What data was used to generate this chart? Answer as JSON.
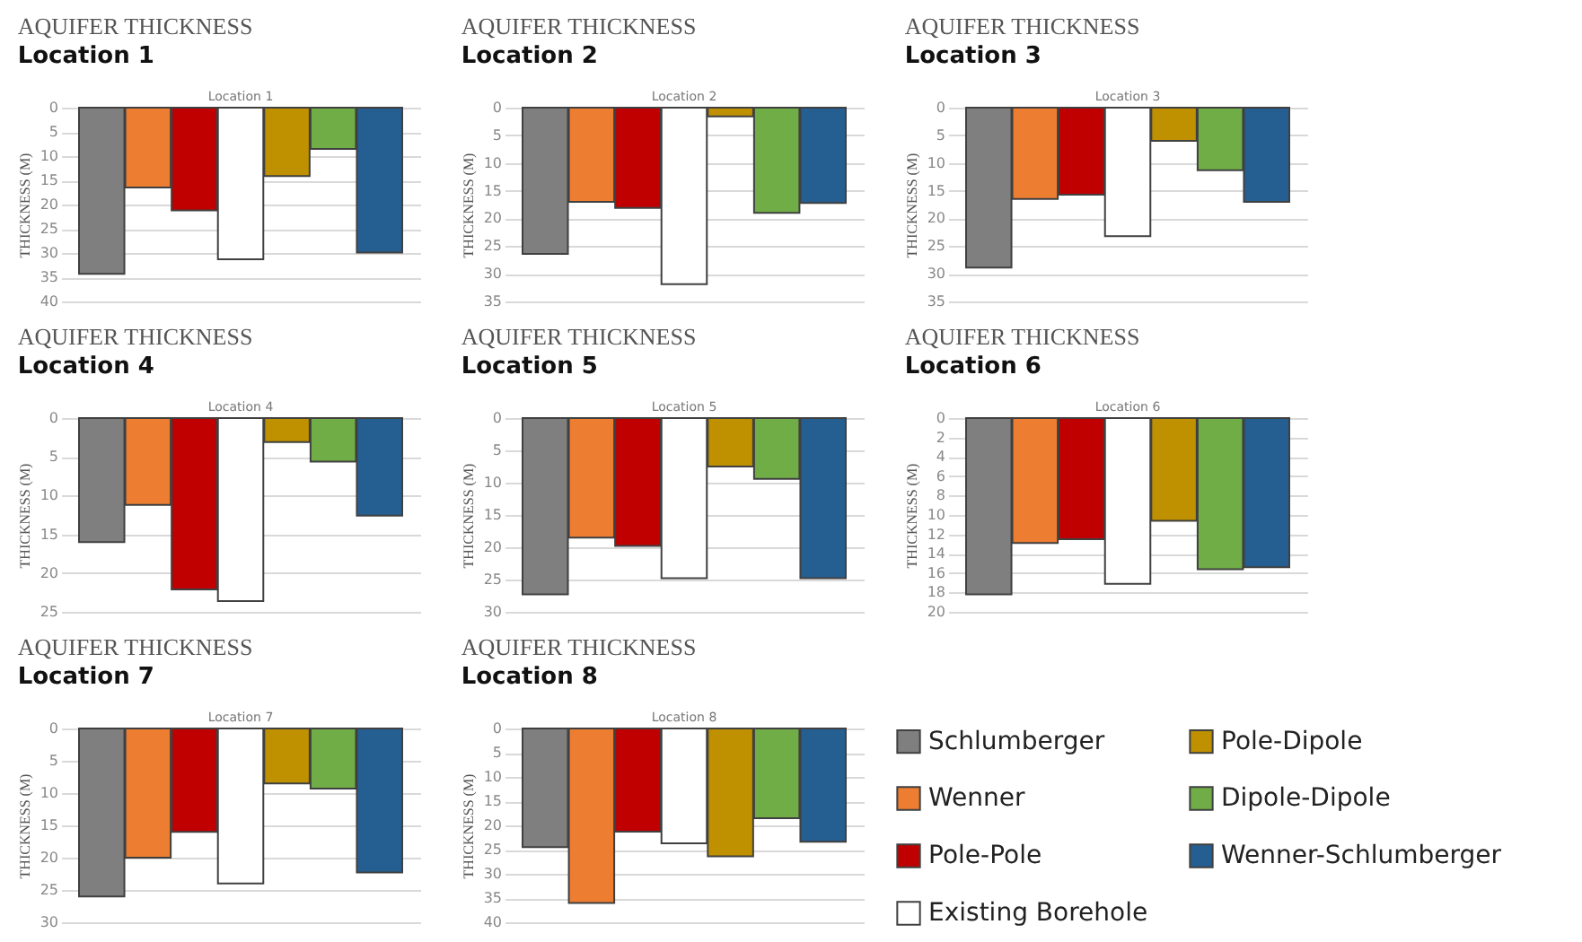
{
  "chart_data": [
    {
      "type": "bar",
      "title": "AQUIFER THICKNESS",
      "subtitle": "Location 1",
      "annotations": [
        "Location 1"
      ],
      "ylabel": "THICKNESS (M)",
      "categories": [
        null
      ],
      "ylim": [
        40,
        0
      ],
      "yticks": [
        0,
        5,
        10,
        15,
        20,
        25,
        30,
        35,
        40
      ],
      "grid": "y",
      "tick_labels": "y",
      "series": [
        {
          "color": "#7f7f7f",
          "values": [
            34.3
          ]
        },
        {
          "color": "#ed7d31",
          "values": [
            16.5
          ]
        },
        {
          "color": "#c00000",
          "values": [
            21.2
          ]
        },
        {
          "color": "#ffffff",
          "values": [
            31.3
          ]
        },
        {
          "color": "#bf9000",
          "values": [
            14.1
          ]
        },
        {
          "color": "#70ad47",
          "values": [
            8.5
          ]
        },
        {
          "color": "#255e91",
          "values": [
            29.9
          ]
        }
      ]
    },
    {
      "type": "bar",
      "title": "AQUIFER THICKNESS",
      "subtitle": "Location 2",
      "annotations": [
        "Location 2"
      ],
      "ylabel": "THICKNESS (M)",
      "categories": [
        null
      ],
      "ylim": [
        35,
        0
      ],
      "yticks": [
        0,
        5,
        10,
        15,
        20,
        25,
        30,
        35
      ],
      "grid": "y",
      "tick_labels": "y",
      "series": [
        {
          "color": "#7f7f7f",
          "values": [
            26.4
          ]
        },
        {
          "color": "#ed7d31",
          "values": [
            17
          ]
        },
        {
          "color": "#c00000",
          "values": [
            18.1
          ]
        },
        {
          "color": "#ffffff",
          "values": [
            31.9
          ]
        },
        {
          "color": "#bf9000",
          "values": [
            1.6
          ]
        },
        {
          "color": "#70ad47",
          "values": [
            19
          ]
        },
        {
          "color": "#255e91",
          "values": [
            17.2
          ]
        }
      ]
    },
    {
      "type": "bar",
      "title": "AQUIFER THICKNESS",
      "subtitle": "Location 3",
      "annotations": [
        "Location 3"
      ],
      "ylabel": "THICKNESS (M)",
      "categories": [
        null
      ],
      "ylim": [
        35,
        0
      ],
      "yticks": [
        0,
        5,
        10,
        15,
        20,
        25,
        30,
        35
      ],
      "grid": "y",
      "tick_labels": "y",
      "series": [
        {
          "color": "#7f7f7f",
          "values": [
            28.9
          ]
        },
        {
          "color": "#ed7d31",
          "values": [
            16.5
          ]
        },
        {
          "color": "#c00000",
          "values": [
            15.7
          ]
        },
        {
          "color": "#ffffff",
          "values": [
            23.2
          ]
        },
        {
          "color": "#bf9000",
          "values": [
            6
          ]
        },
        {
          "color": "#70ad47",
          "values": [
            11.3
          ]
        },
        {
          "color": "#255e91",
          "values": [
            17
          ]
        }
      ]
    },
    {
      "type": "bar",
      "title": "AQUIFER THICKNESS",
      "subtitle": "Location 4",
      "annotations": [
        "Location 4"
      ],
      "ylabel": "THICKNESS (M)",
      "categories": [
        null
      ],
      "ylim": [
        25,
        0
      ],
      "yticks": [
        0,
        5,
        10,
        15,
        20,
        25
      ],
      "grid": "y",
      "tick_labels": "y",
      "series": [
        {
          "color": "#7f7f7f",
          "values": [
            16
          ]
        },
        {
          "color": "#ed7d31",
          "values": [
            11.2
          ]
        },
        {
          "color": "#c00000",
          "values": [
            22.1
          ]
        },
        {
          "color": "#ffffff",
          "values": [
            23.6
          ]
        },
        {
          "color": "#bf9000",
          "values": [
            3.1
          ]
        },
        {
          "color": "#70ad47",
          "values": [
            5.6
          ]
        },
        {
          "color": "#255e91",
          "values": [
            12.6
          ]
        }
      ]
    },
    {
      "type": "bar",
      "title": "AQUIFER THICKNESS",
      "subtitle": "Location 5",
      "annotations": [
        "Location 5"
      ],
      "ylabel": "THICKNESS (M)",
      "categories": [
        null
      ],
      "ylim": [
        30,
        0
      ],
      "yticks": [
        0,
        5,
        10,
        15,
        20,
        25,
        30
      ],
      "grid": "y",
      "tick_labels": "y",
      "series": [
        {
          "color": "#7f7f7f",
          "values": [
            27.3
          ]
        },
        {
          "color": "#ed7d31",
          "values": [
            18.5
          ]
        },
        {
          "color": "#c00000",
          "values": [
            19.8
          ]
        },
        {
          "color": "#ffffff",
          "values": [
            24.8
          ]
        },
        {
          "color": "#bf9000",
          "values": [
            7.5
          ]
        },
        {
          "color": "#70ad47",
          "values": [
            9.4
          ]
        },
        {
          "color": "#255e91",
          "values": [
            24.8
          ]
        }
      ]
    },
    {
      "type": "bar",
      "title": "AQUIFER THICKNESS",
      "subtitle": "Location 6",
      "annotations": [
        "Location 6"
      ],
      "ylabel": "THICKNESS (M)",
      "categories": [
        null
      ],
      "ylim": [
        20,
        0
      ],
      "yticks": [
        0,
        2,
        4,
        6,
        8,
        10,
        12,
        14,
        16,
        18,
        20
      ],
      "grid": "y",
      "tick_labels": "y",
      "series": [
        {
          "color": "#7f7f7f",
          "values": [
            18.2
          ]
        },
        {
          "color": "#ed7d31",
          "values": [
            12.9
          ]
        },
        {
          "color": "#c00000",
          "values": [
            12.5
          ]
        },
        {
          "color": "#ffffff",
          "values": [
            17.1
          ]
        },
        {
          "color": "#bf9000",
          "values": [
            10.6
          ]
        },
        {
          "color": "#70ad47",
          "values": [
            15.6
          ]
        },
        {
          "color": "#255e91",
          "values": [
            15.4
          ]
        }
      ]
    },
    {
      "type": "bar",
      "title": "AQUIFER THICKNESS",
      "subtitle": "Location 7",
      "annotations": [
        "Location 7"
      ],
      "ylabel": "THICKNESS (M)",
      "categories": [
        null
      ],
      "ylim": [
        30,
        0
      ],
      "yticks": [
        0,
        5,
        10,
        15,
        20,
        25,
        30
      ],
      "grid": "y",
      "tick_labels": "y",
      "series": [
        {
          "color": "#7f7f7f",
          "values": [
            26
          ]
        },
        {
          "color": "#ed7d31",
          "values": [
            20
          ]
        },
        {
          "color": "#c00000",
          "values": [
            16
          ]
        },
        {
          "color": "#ffffff",
          "values": [
            24
          ]
        },
        {
          "color": "#bf9000",
          "values": [
            8.5
          ]
        },
        {
          "color": "#70ad47",
          "values": [
            9.3
          ]
        },
        {
          "color": "#255e91",
          "values": [
            22.3
          ]
        }
      ]
    },
    {
      "type": "bar",
      "title": "AQUIFER THICKNESS",
      "subtitle": "Location 8",
      "annotations": [
        "Location 8"
      ],
      "ylabel": "THICKNESS (M)",
      "categories": [
        null
      ],
      "ylim": [
        40,
        0
      ],
      "yticks": [
        0,
        5,
        10,
        15,
        20,
        25,
        30,
        35,
        40
      ],
      "grid": "y",
      "tick_labels": "y",
      "legend": "right",
      "series": [
        {
          "name": "Schlumberger",
          "color": "#7f7f7f",
          "values": [
            24.5
          ]
        },
        {
          "name": "Wenner",
          "color": "#ed7d31",
          "values": [
            36
          ]
        },
        {
          "name": "Pole-Pole",
          "color": "#c00000",
          "values": [
            21.3
          ]
        },
        {
          "name": "Existing Borehole",
          "color": "#ffffff",
          "values": [
            23.7
          ]
        },
        {
          "name": "Pole-Dipole",
          "color": "#bf9000",
          "values": [
            26.4
          ]
        },
        {
          "name": "Dipole-Dipole",
          "color": "#70ad47",
          "values": [
            18.5
          ]
        },
        {
          "name": "Wenner-Schlumberger",
          "color": "#255e91",
          "values": [
            23.4
          ]
        }
      ]
    }
  ]
}
